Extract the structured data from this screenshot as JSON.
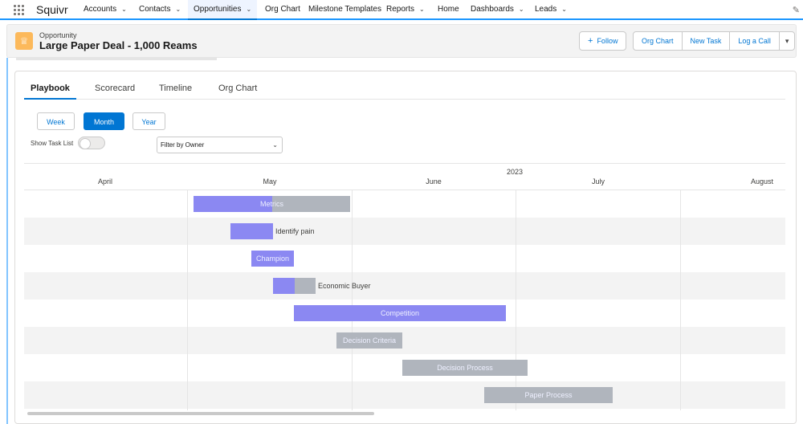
{
  "topnav": {
    "app_name": "Squivr",
    "items": [
      {
        "label": "Accounts",
        "chevron": true,
        "active": false
      },
      {
        "label": "Contacts",
        "chevron": true,
        "active": false
      },
      {
        "label": "Opportunities",
        "chevron": true,
        "active": true
      },
      {
        "label": "Org Chart",
        "chevron": false,
        "active": false
      },
      {
        "label": "Milestone Templates",
        "chevron": false,
        "active": false
      },
      {
        "label": "Reports",
        "chevron": true,
        "active": false
      },
      {
        "label": "Home",
        "chevron": false,
        "active": false
      },
      {
        "label": "Dashboards",
        "chevron": true,
        "active": false
      },
      {
        "label": "Leads",
        "chevron": true,
        "active": false
      }
    ]
  },
  "header": {
    "object_type": "Opportunity",
    "record_name": "Large Paper Deal - 1,000 Reams",
    "follow_label": "Follow",
    "org_chart_label": "Org Chart",
    "new_task_label": "New Task",
    "log_call_label": "Log a Call",
    "icon": "crown-icon"
  },
  "tabs": [
    {
      "label": "Playbook",
      "active": true
    },
    {
      "label": "Scorecard",
      "active": false
    },
    {
      "label": "Timeline",
      "active": false
    },
    {
      "label": "Org Chart",
      "active": false
    }
  ],
  "view_buttons": [
    {
      "label": "Week",
      "active": false
    },
    {
      "label": "Month",
      "active": true
    },
    {
      "label": "Year",
      "active": false
    }
  ],
  "show_task_list": {
    "label": "Show Task List",
    "checked": false
  },
  "filter": {
    "value": "Filter by Owner"
  },
  "gantt": {
    "year": "2023",
    "months": [
      "April",
      "May",
      "June",
      "July",
      "August"
    ],
    "tasks": [
      {
        "name": "Metrics",
        "progress": 0.5
      },
      {
        "name": "Identify pain",
        "progress": 1.0
      },
      {
        "name": "Champion",
        "progress": 1.0
      },
      {
        "name": "Economic Buyer",
        "progress": 0.5
      },
      {
        "name": "Competition",
        "progress": 1.0
      },
      {
        "name": "Decision Criteria",
        "progress": 0.0
      },
      {
        "name": "Decision Process",
        "progress": 0.0
      },
      {
        "name": "Paper Process",
        "progress": 0.0
      }
    ]
  }
}
